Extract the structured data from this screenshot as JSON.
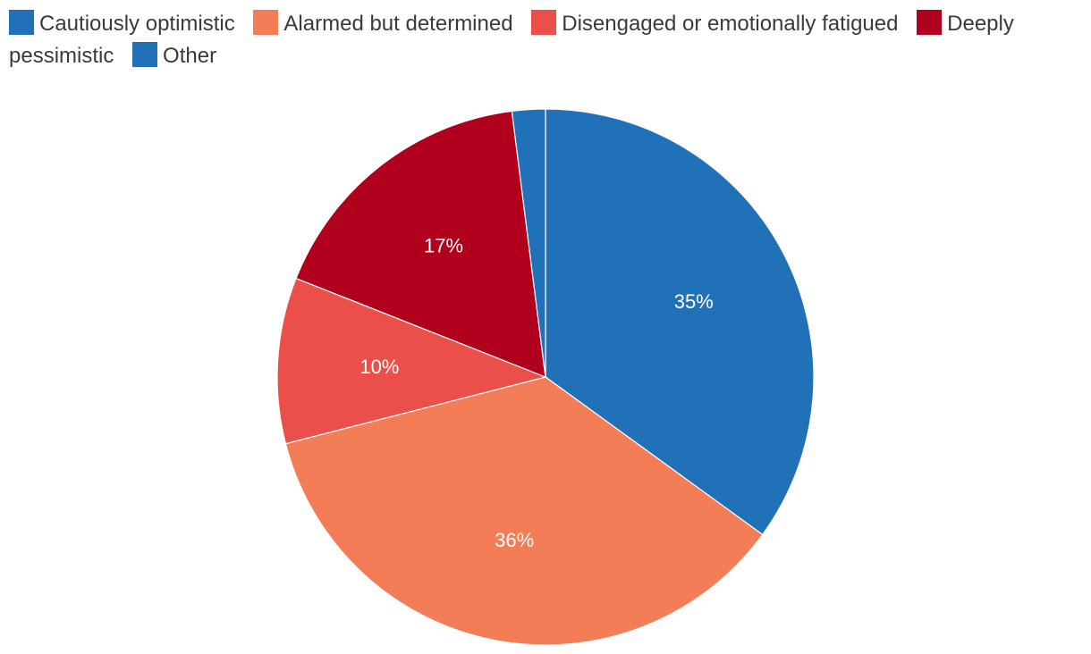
{
  "chart_data": {
    "type": "pie",
    "title": "",
    "legend_position": "top-left",
    "slices": [
      {
        "label": "Cautiously optimistic",
        "value": 35,
        "value_label": "35%",
        "color": "#2171b9"
      },
      {
        "label": "Alarmed but determined",
        "value": 36,
        "value_label": "36%",
        "color": "#f37d57"
      },
      {
        "label": "Disengaged or emotionally fatigued",
        "value": 10,
        "value_label": "10%",
        "color": "#eb4f4a"
      },
      {
        "label": "Deeply pessimistic",
        "value": 17,
        "value_label": "17%",
        "color": "#b0001e"
      },
      {
        "label": "Other",
        "value": 2,
        "value_label": "",
        "color": "#2171b9"
      }
    ]
  }
}
